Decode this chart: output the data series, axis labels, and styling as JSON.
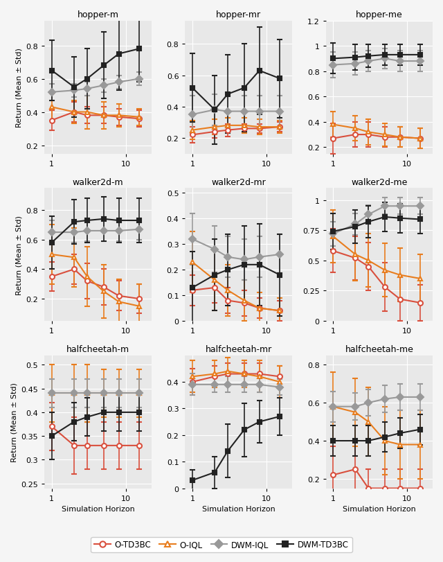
{
  "x_values": [
    1,
    2,
    3,
    5,
    8,
    15
  ],
  "subplot_titles": [
    "hopper-m",
    "hopper-mr",
    "hopper-me",
    "walker2d-m",
    "walker2d-mr",
    "walker2d-me",
    "halfcheetah-m",
    "halfcheetah-mr",
    "halfcheetah-me"
  ],
  "methods": [
    "O-TD3BC",
    "O-IQL",
    "DWM-IQL",
    "DWM-TD3BC"
  ],
  "colors": [
    "#d94f3d",
    "#e87d1e",
    "#999999",
    "#222222"
  ],
  "markers": [
    "o",
    "^",
    "D",
    "s"
  ],
  "legend_labels": [
    "O-TD3BC",
    "O-IQL",
    "DWM-IQL",
    "DWM-TD3BC"
  ],
  "data": {
    "hopper-m": {
      "O-TD3BC": {
        "mean": [
          0.35,
          0.4,
          0.38,
          0.38,
          0.37,
          0.36
        ],
        "std": [
          0.06,
          0.06,
          0.05,
          0.05,
          0.05,
          0.05
        ]
      },
      "O-IQL": {
        "mean": [
          0.43,
          0.4,
          0.4,
          0.38,
          0.38,
          0.37
        ],
        "std": [
          0.08,
          0.07,
          0.1,
          0.08,
          0.07,
          0.05
        ]
      },
      "DWM-IQL": {
        "mean": [
          0.52,
          0.53,
          0.54,
          0.56,
          0.58,
          0.6
        ],
        "std": [
          0.05,
          0.04,
          0.04,
          0.04,
          0.04,
          0.04
        ]
      },
      "DWM-TD3BC": {
        "mean": [
          0.65,
          0.55,
          0.6,
          0.68,
          0.75,
          0.78
        ],
        "std": [
          0.18,
          0.18,
          0.18,
          0.2,
          0.22,
          0.2
        ]
      }
    },
    "hopper-mr": {
      "O-TD3BC": {
        "mean": [
          0.22,
          0.24,
          0.25,
          0.26,
          0.26,
          0.27
        ],
        "std": [
          0.05,
          0.04,
          0.04,
          0.03,
          0.03,
          0.03
        ]
      },
      "O-IQL": {
        "mean": [
          0.25,
          0.27,
          0.28,
          0.28,
          0.27,
          0.27
        ],
        "std": [
          0.06,
          0.05,
          0.05,
          0.05,
          0.05,
          0.04
        ]
      },
      "DWM-IQL": {
        "mean": [
          0.35,
          0.38,
          0.37,
          0.37,
          0.37,
          0.37
        ],
        "std": [
          0.12,
          0.1,
          0.1,
          0.1,
          0.1,
          0.1
        ]
      },
      "DWM-TD3BC": {
        "mean": [
          0.52,
          0.38,
          0.48,
          0.52,
          0.63,
          0.58
        ],
        "std": [
          0.22,
          0.22,
          0.25,
          0.28,
          0.28,
          0.25
        ]
      }
    },
    "hopper-me": {
      "O-TD3BC": {
        "mean": [
          0.27,
          0.3,
          0.3,
          0.28,
          0.28,
          0.27
        ],
        "std": [
          0.12,
          0.1,
          0.1,
          0.08,
          0.08,
          0.08
        ]
      },
      "O-IQL": {
        "mean": [
          0.38,
          0.35,
          0.32,
          0.3,
          0.28,
          0.27
        ],
        "std": [
          0.1,
          0.1,
          0.1,
          0.09,
          0.08,
          0.08
        ]
      },
      "DWM-IQL": {
        "mean": [
          0.85,
          0.86,
          0.88,
          0.9,
          0.88,
          0.88
        ],
        "std": [
          0.1,
          0.09,
          0.08,
          0.08,
          0.08,
          0.08
        ]
      },
      "DWM-TD3BC": {
        "mean": [
          0.9,
          0.91,
          0.92,
          0.93,
          0.93,
          0.93
        ],
        "std": [
          0.12,
          0.1,
          0.09,
          0.08,
          0.08,
          0.08
        ]
      }
    },
    "walker2d-m": {
      "O-TD3BC": {
        "mean": [
          0.35,
          0.4,
          0.32,
          0.28,
          0.22,
          0.2
        ],
        "std": [
          0.1,
          0.1,
          0.12,
          0.12,
          0.1,
          0.1
        ]
      },
      "O-IQL": {
        "mean": [
          0.5,
          0.48,
          0.35,
          0.25,
          0.18,
          0.15
        ],
        "std": [
          0.2,
          0.2,
          0.2,
          0.18,
          0.15,
          0.15
        ]
      },
      "DWM-IQL": {
        "mean": [
          0.65,
          0.65,
          0.66,
          0.66,
          0.66,
          0.67
        ],
        "std": [
          0.08,
          0.07,
          0.07,
          0.07,
          0.07,
          0.07
        ]
      },
      "DWM-TD3BC": {
        "mean": [
          0.58,
          0.72,
          0.73,
          0.74,
          0.73,
          0.73
        ],
        "std": [
          0.18,
          0.15,
          0.15,
          0.15,
          0.15,
          0.15
        ]
      }
    },
    "walker2d-mr": {
      "O-TD3BC": {
        "mean": [
          0.12,
          0.13,
          0.08,
          0.07,
          0.05,
          0.04
        ],
        "std": [
          0.06,
          0.06,
          0.05,
          0.05,
          0.04,
          0.04
        ]
      },
      "O-IQL": {
        "mean": [
          0.23,
          0.16,
          0.12,
          0.08,
          0.05,
          0.04
        ],
        "std": [
          0.12,
          0.12,
          0.1,
          0.08,
          0.06,
          0.05
        ]
      },
      "DWM-IQL": {
        "mean": [
          0.32,
          0.28,
          0.25,
          0.24,
          0.25,
          0.26
        ],
        "std": [
          0.1,
          0.09,
          0.08,
          0.08,
          0.08,
          0.08
        ]
      },
      "DWM-TD3BC": {
        "mean": [
          0.13,
          0.18,
          0.2,
          0.22,
          0.22,
          0.18
        ],
        "std": [
          0.14,
          0.14,
          0.14,
          0.15,
          0.16,
          0.16
        ]
      }
    },
    "walker2d-me": {
      "O-TD3BC": {
        "mean": [
          0.58,
          0.52,
          0.45,
          0.28,
          0.18,
          0.15
        ],
        "std": [
          0.18,
          0.18,
          0.2,
          0.2,
          0.18,
          0.15
        ]
      },
      "O-IQL": {
        "mean": [
          0.7,
          0.55,
          0.5,
          0.42,
          0.38,
          0.35
        ],
        "std": [
          0.22,
          0.22,
          0.22,
          0.22,
          0.22,
          0.2
        ]
      },
      "DWM-IQL": {
        "mean": [
          0.72,
          0.8,
          0.88,
          0.95,
          0.95,
          0.95
        ],
        "std": [
          0.1,
          0.09,
          0.08,
          0.07,
          0.07,
          0.07
        ]
      },
      "DWM-TD3BC": {
        "mean": [
          0.74,
          0.78,
          0.82,
          0.86,
          0.85,
          0.84
        ],
        "std": [
          0.15,
          0.14,
          0.13,
          0.12,
          0.12,
          0.12
        ]
      }
    },
    "halfcheetah-m": {
      "O-TD3BC": {
        "mean": [
          0.37,
          0.33,
          0.33,
          0.33,
          0.33,
          0.33
        ],
        "std": [
          0.05,
          0.06,
          0.05,
          0.05,
          0.05,
          0.05
        ]
      },
      "O-IQL": {
        "mean": [
          0.44,
          0.44,
          0.44,
          0.44,
          0.44,
          0.44
        ],
        "std": [
          0.06,
          0.06,
          0.06,
          0.05,
          0.05,
          0.05
        ]
      },
      "DWM-IQL": {
        "mean": [
          0.44,
          0.44,
          0.44,
          0.44,
          0.44,
          0.44
        ],
        "std": [
          0.03,
          0.03,
          0.03,
          0.03,
          0.03,
          0.03
        ]
      },
      "DWM-TD3BC": {
        "mean": [
          0.35,
          0.38,
          0.39,
          0.4,
          0.4,
          0.4
        ],
        "std": [
          0.05,
          0.04,
          0.04,
          0.04,
          0.04,
          0.04
        ]
      }
    },
    "halfcheetah-mr": {
      "O-TD3BC": {
        "mean": [
          0.4,
          0.42,
          0.43,
          0.43,
          0.43,
          0.42
        ],
        "std": [
          0.05,
          0.04,
          0.04,
          0.04,
          0.04,
          0.04
        ]
      },
      "O-IQL": {
        "mean": [
          0.42,
          0.43,
          0.44,
          0.43,
          0.42,
          0.4
        ],
        "std": [
          0.06,
          0.05,
          0.05,
          0.05,
          0.06,
          0.06
        ]
      },
      "DWM-IQL": {
        "mean": [
          0.39,
          0.39,
          0.39,
          0.39,
          0.39,
          0.38
        ],
        "std": [
          0.04,
          0.03,
          0.03,
          0.03,
          0.03,
          0.03
        ]
      },
      "DWM-TD3BC": {
        "mean": [
          0.03,
          0.06,
          0.14,
          0.22,
          0.25,
          0.27
        ],
        "std": [
          0.04,
          0.06,
          0.1,
          0.1,
          0.08,
          0.07
        ]
      }
    },
    "halfcheetah-me": {
      "O-TD3BC": {
        "mean": [
          0.22,
          0.25,
          0.15,
          0.15,
          0.15,
          0.15
        ],
        "std": [
          0.15,
          0.15,
          0.1,
          0.1,
          0.1,
          0.1
        ]
      },
      "O-IQL": {
        "mean": [
          0.58,
          0.55,
          0.5,
          0.4,
          0.38,
          0.38
        ],
        "std": [
          0.18,
          0.18,
          0.18,
          0.18,
          0.18,
          0.18
        ]
      },
      "DWM-IQL": {
        "mean": [
          0.58,
          0.58,
          0.6,
          0.62,
          0.63,
          0.63
        ],
        "std": [
          0.08,
          0.07,
          0.07,
          0.07,
          0.07,
          0.07
        ]
      },
      "DWM-TD3BC": {
        "mean": [
          0.4,
          0.4,
          0.4,
          0.42,
          0.44,
          0.46
        ],
        "std": [
          0.08,
          0.08,
          0.08,
          0.08,
          0.08,
          0.08
        ]
      }
    }
  },
  "ylims": {
    "hopper-m": [
      0.15,
      0.95
    ],
    "hopper-mr": [
      0.1,
      0.95
    ],
    "hopper-me": [
      0.15,
      1.15
    ],
    "walker2d-m": [
      0.05,
      0.95
    ],
    "walker2d-mr": [
      0.0,
      0.52
    ],
    "walker2d-me": [
      0.0,
      1.1
    ],
    "halfcheetah-m": [
      0.24,
      0.52
    ],
    "halfcheetah-mr": [
      0.0,
      0.5
    ],
    "halfcheetah-me": [
      0.15,
      0.85
    ]
  },
  "ytick_labels": {
    "hopper-m": [
      0.2,
      0.4,
      0.6,
      0.8
    ],
    "hopper-mr": [
      0.2,
      0.4,
      0.6,
      0.8
    ],
    "hopper-me": [
      0.2,
      0.4,
      0.6,
      0.8,
      1.0,
      1.2
    ],
    "walker2d-m": [
      0.2,
      0.4,
      0.6,
      0.8
    ],
    "walker2d-mr": [
      0.0,
      0.1,
      0.2,
      0.3,
      0.4,
      0.5
    ],
    "walker2d-me": [
      0.0,
      0.25,
      0.5,
      0.75,
      1.0
    ],
    "halfcheetah-m": [
      0.25,
      0.3,
      0.35,
      0.4,
      0.45,
      0.5
    ],
    "halfcheetah-mr": [
      0.0,
      0.1,
      0.2,
      0.3,
      0.4
    ],
    "halfcheetah-me": [
      0.2,
      0.4,
      0.6,
      0.8
    ]
  },
  "background_color": "#e8e8e8",
  "figure_background": "#f5f5f5"
}
